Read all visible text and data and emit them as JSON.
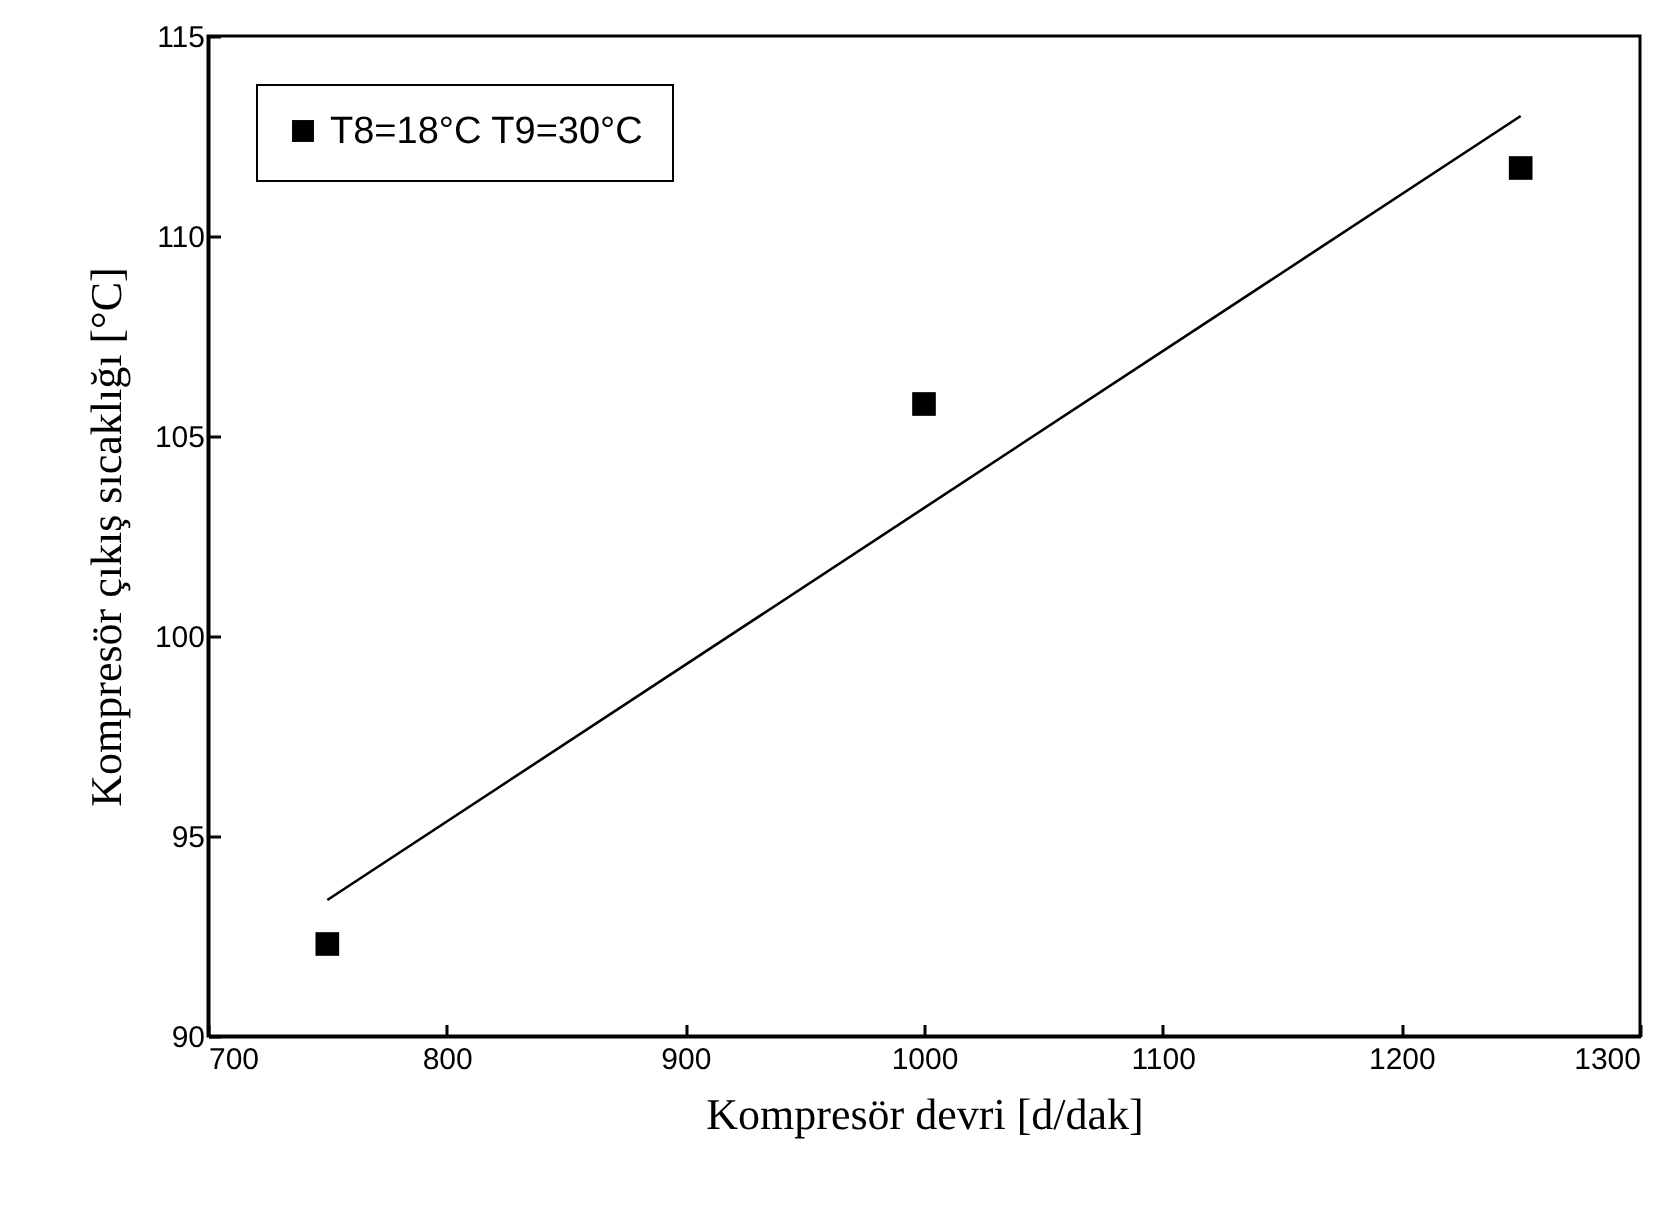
{
  "chart_data": {
    "type": "scatter",
    "xlabel": "Kompresör devri [d/dak]",
    "ylabel": "Kompresör çıkış sıcaklığı [°C]",
    "xlim": [
      700,
      1300
    ],
    "xticks": [
      700,
      800,
      900,
      1000,
      1100,
      1200,
      1300
    ],
    "ylim": [
      90,
      115
    ],
    "yticks": [
      90,
      95,
      100,
      105,
      110,
      115
    ],
    "grid": false,
    "legend": "top left",
    "series": [
      {
        "name": "T8=18°C T9=30°C",
        "marker": "square",
        "color": "#000000",
        "x": [
          750,
          1000,
          1250
        ],
        "values": [
          92.3,
          105.8,
          111.7
        ]
      },
      {
        "type": "line",
        "marker": "none",
        "color": "#000000",
        "line_style": "solid",
        "x": [
          750,
          1250
        ],
        "values": [
          93.4,
          113.0
        ]
      }
    ]
  }
}
